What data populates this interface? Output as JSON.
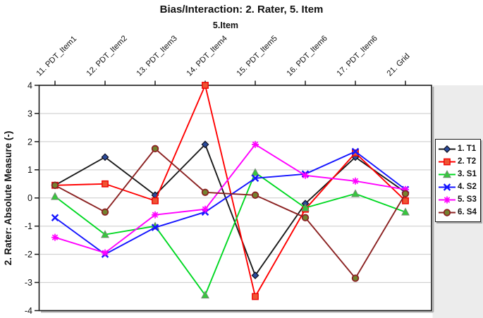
{
  "chart_data": {
    "type": "line",
    "title": "Bias/Interaction: 2. Rater, 5. Item",
    "subtitle": "5.Item",
    "ylabel": "2. Rater: Absolute Measure (-)",
    "ylim": [
      -4,
      4
    ],
    "y_ticks": [
      4,
      3,
      2,
      1,
      0,
      -1,
      -2,
      -3,
      -4
    ],
    "grid": "horizontal-light-gray",
    "legend_position": "right",
    "x_labels_position": "top-rotated-45",
    "categories": [
      "11. PDT_Item1",
      "12. PDT_Item2",
      "13. PDT_Item3",
      "14. PDT_Item4",
      "15. PDT_Item5",
      "16. PDT_Item6",
      "17. PDT_Item6",
      "21. Grid"
    ],
    "series": [
      {
        "name": "1. T1",
        "color": "#1a1a1a",
        "marker": "diamond",
        "marker_fill": "#2a4b9b",
        "marker_stroke": "#101020",
        "values": [
          0.45,
          1.45,
          0.1,
          1.9,
          -2.75,
          -0.2,
          1.45,
          0.2
        ]
      },
      {
        "name": "2. T2",
        "color": "#ff0000",
        "marker": "square",
        "marker_fill": "#ee5533",
        "marker_stroke": "#ee0000",
        "values": [
          0.45,
          0.5,
          -0.1,
          4.0,
          -3.5,
          -0.4,
          1.6,
          -0.1
        ]
      },
      {
        "name": "3. S1",
        "color": "#00d822",
        "marker": "triangle",
        "marker_fill": "#35c93c",
        "marker_stroke": "#6e8f6e",
        "values": [
          0.05,
          -1.3,
          -1.0,
          -3.45,
          0.9,
          -0.35,
          0.15,
          -0.5
        ]
      },
      {
        "name": "4. S2",
        "color": "#1515ff",
        "marker": "x",
        "marker_fill": "#1515ff",
        "marker_stroke": "#1515ff",
        "values": [
          -0.7,
          -2.0,
          -1.05,
          -0.5,
          0.7,
          0.85,
          1.65,
          0.3
        ]
      },
      {
        "name": "5. S3",
        "color": "#ff00ff",
        "marker": "asterisk",
        "marker_fill": "#ff00ff",
        "marker_stroke": "#ff00ff",
        "values": [
          -1.4,
          -1.95,
          -0.6,
          -0.4,
          1.9,
          0.8,
          0.6,
          0.3
        ]
      },
      {
        "name": "6. S4",
        "color": "#8b2222",
        "marker": "circle",
        "marker_fill": "#73832f",
        "marker_stroke": "#8b2222",
        "values": [
          0.45,
          -0.5,
          1.75,
          0.2,
          0.1,
          -0.7,
          -2.85,
          0.15
        ]
      }
    ]
  },
  "style": {
    "plot_border_color": "#1a1a1a",
    "grid_color": "#c9c9c9",
    "shadow_color": "#aaaaaa",
    "right_margin_fill": "#ececec",
    "background": "#ffffff"
  }
}
